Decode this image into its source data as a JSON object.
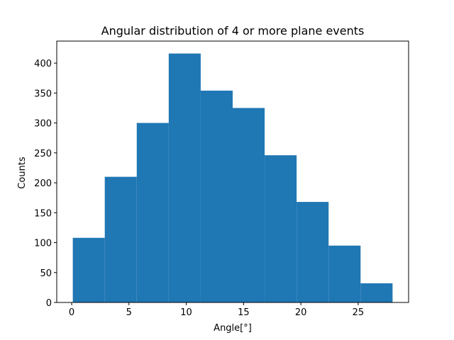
{
  "chart_data": {
    "type": "bar",
    "subtype": "histogram",
    "title": "Angular distribution of 4 or more plane events",
    "xlabel": "Angle[°]",
    "ylabel": "Counts",
    "bin_edges": [
      0.1,
      2.89,
      5.68,
      8.47,
      11.26,
      14.05,
      16.84,
      19.63,
      22.42,
      25.21,
      28.0
    ],
    "values": [
      108,
      210,
      300,
      416,
      354,
      325,
      246,
      168,
      95,
      32
    ],
    "xlim": [
      -1.3,
      29.4
    ],
    "ylim": [
      0,
      436.8
    ],
    "xticks": [
      0,
      5,
      10,
      15,
      20,
      25
    ],
    "yticks": [
      0,
      50,
      100,
      150,
      200,
      250,
      300,
      350,
      400
    ],
    "bar_color": "#1f77b4",
    "grid": false,
    "legend": false
  }
}
